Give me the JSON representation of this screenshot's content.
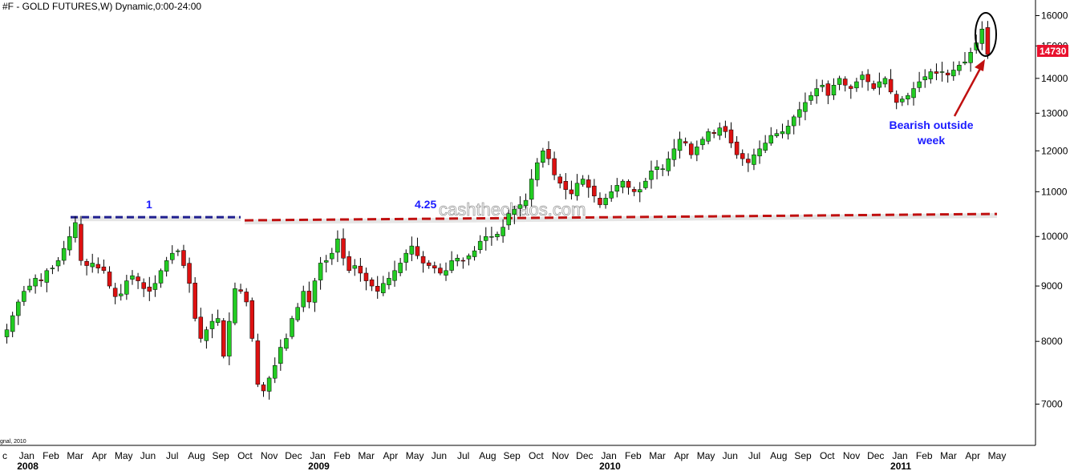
{
  "title": "#F - GOLD FUTURES,W) Dynamic,0:00-24:00",
  "watermark": "cashthechaos.com",
  "footer_fragment": "gnal, 2010",
  "colors": {
    "up": "#22cc22",
    "down": "#dd1111",
    "wick": "#000000",
    "blue_line": "#1f1f8f",
    "red_line": "#c01010",
    "annotation": "#1a1aff",
    "arrow": "#c01010",
    "last_label_bg": "#e8112d"
  },
  "chart_data": {
    "type": "candlestick",
    "title": "#F - GOLD FUTURES,W) Dynamic,0:00-24:00",
    "y_scale": "log",
    "ylim": [
      6500,
      16400
    ],
    "y_ticks": [
      7000,
      8000,
      9000,
      10000,
      11000,
      12000,
      13000,
      14000,
      15000,
      16000
    ],
    "y_tick_labels": [
      "7000",
      "8000",
      "9000",
      "10000",
      "11000",
      "12000",
      "13000",
      "14000",
      "15000",
      "16000"
    ],
    "last_value": 14730,
    "last_value_label": "14730",
    "x_month_labels": [
      "c",
      "Jan",
      "Feb",
      "Mar",
      "Apr",
      "May",
      "Jun",
      "Jul",
      "Aug",
      "Sep",
      "Oct",
      "Nov",
      "Dec",
      "Jan",
      "Feb",
      "Mar",
      "Apr",
      "May",
      "Jun",
      "Jul",
      "Aug",
      "Sep",
      "Oct",
      "Nov",
      "Dec",
      "Jan",
      "Feb",
      "Mar",
      "Apr",
      "May",
      "Jun",
      "Jul",
      "Aug",
      "Sep",
      "Oct",
      "Nov",
      "Dec",
      "Jan",
      "Feb",
      "Mar",
      "Apr",
      "May"
    ],
    "x_year_labels": [
      "2008",
      "2009",
      "2010",
      "2011"
    ],
    "annotations": {
      "label_1": "1",
      "label_2": "4.25",
      "callout": [
        "Bearish outside",
        "week"
      ],
      "level": 10350
    },
    "series_close": [
      8200,
      8450,
      8700,
      8900,
      9000,
      9150,
      9100,
      9300,
      9350,
      9500,
      9750,
      10000,
      10300,
      9500,
      9400,
      9450,
      9350,
      9300,
      9000,
      8800,
      8850,
      9100,
      9200,
      9100,
      8950,
      8900,
      9050,
      9300,
      9500,
      9650,
      9700,
      9400,
      9050,
      8400,
      8050,
      8200,
      8350,
      8400,
      7750,
      8350,
      8950,
      8900,
      8700,
      8050,
      7300,
      7200,
      7400,
      7600,
      7900,
      8050,
      8400,
      8600,
      8900,
      8700,
      9100,
      9450,
      9500,
      9650,
      9950,
      9550,
      9300,
      9400,
      9250,
      9100,
      9000,
      8900,
      9050,
      9150,
      9300,
      9450,
      9650,
      9800,
      9600,
      9450,
      9400,
      9350,
      9250,
      9300,
      9500,
      9550,
      9500,
      9600,
      9700,
      9900,
      10000,
      10000,
      10050,
      10200,
      10500,
      10600,
      10700,
      10800,
      11300,
      11700,
      12000,
      11800,
      11400,
      11200,
      11050,
      10950,
      11200,
      11300,
      11100,
      10900,
      10700,
      10850,
      11000,
      11150,
      11250,
      11100,
      11000,
      11050,
      11250,
      11500,
      11600,
      11550,
      11800,
      12050,
      12300,
      12200,
      11900,
      12100,
      12300,
      12500,
      12450,
      12600,
      12500,
      12200,
      11900,
      11800,
      11700,
      11900,
      12050,
      12200,
      12400,
      12450,
      12500,
      12650,
      12900,
      13100,
      13300,
      13500,
      13700,
      13800,
      13500,
      13800,
      14000,
      13800,
      13700,
      13900,
      14100,
      13900,
      13700,
      13900,
      14000,
      13600,
      13300,
      13400,
      13500,
      13700,
      13900,
      14050,
      14200,
      14150,
      14200,
      14100,
      14250,
      14400,
      14500,
      14800,
      15100,
      15550,
      14730
    ],
    "series_open_hint": "open computed from previous close",
    "series_highs_lows_hint": "derived"
  }
}
